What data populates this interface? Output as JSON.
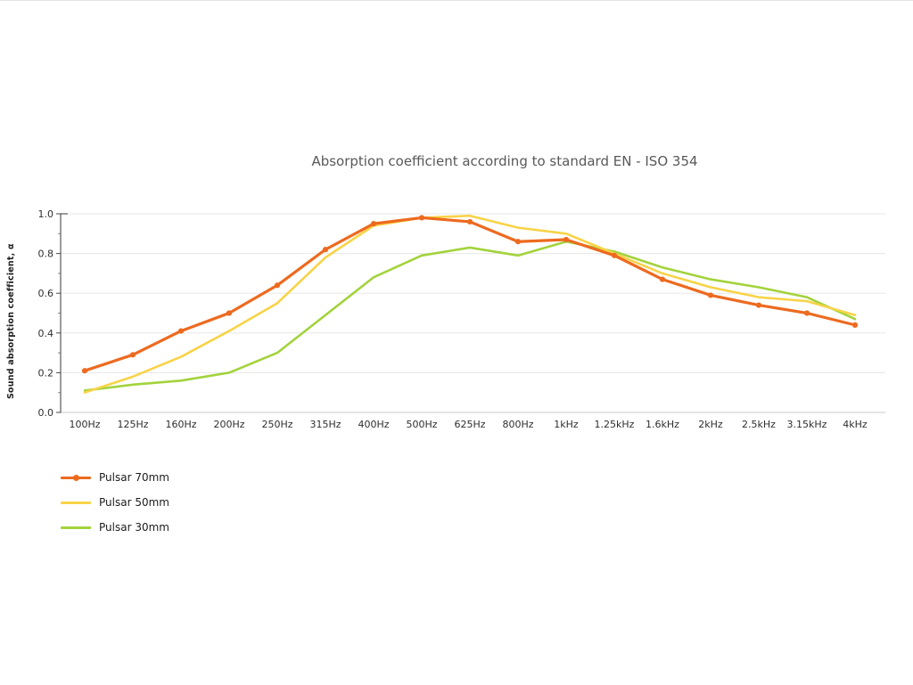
{
  "chart_data": {
    "type": "line",
    "title": "Absorption coefficient according to standard EN - ISO 354",
    "xlabel": "",
    "ylabel": "Sound absorption coefficient, α",
    "categories": [
      "100Hz",
      "125Hz",
      "160Hz",
      "200Hz",
      "250Hz",
      "315Hz",
      "400Hz",
      "500Hz",
      "625Hz",
      "800Hz",
      "1kHz",
      "1.25kHz",
      "1.6kHz",
      "2kHz",
      "2.5kHz",
      "3.15kHz",
      "4kHz"
    ],
    "series": [
      {
        "name": "Pulsar 70mm",
        "color": "#ed6a1f",
        "marker": "circle",
        "values": [
          0.21,
          0.29,
          0.41,
          0.5,
          0.64,
          0.82,
          0.95,
          0.98,
          0.96,
          0.86,
          0.87,
          0.79,
          0.67,
          0.59,
          0.54,
          0.5,
          0.44
        ]
      },
      {
        "name": "Pulsar 50mm",
        "color": "#f8d347",
        "marker": "none",
        "values": [
          0.1,
          0.18,
          0.28,
          0.41,
          0.55,
          0.78,
          0.94,
          0.98,
          0.99,
          0.93,
          0.9,
          0.8,
          0.7,
          0.63,
          0.58,
          0.56,
          0.49
        ]
      },
      {
        "name": "Pulsar 30mm",
        "color": "#a3d33c",
        "marker": "none",
        "values": [
          0.11,
          0.14,
          0.16,
          0.2,
          0.3,
          0.49,
          0.68,
          0.79,
          0.83,
          0.79,
          0.86,
          0.81,
          0.73,
          0.67,
          0.63,
          0.58,
          0.47
        ]
      }
    ],
    "ylim": [
      0.0,
      1.0
    ],
    "ytick_labels": [
      "0.0",
      "0.2",
      "0.4",
      "0.6",
      "0.8",
      "1.0"
    ],
    "grid": true,
    "legend_position": "bottom-left"
  }
}
